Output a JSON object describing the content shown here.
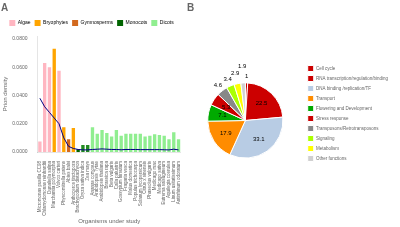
{
  "chart_data": [
    {
      "type": "bar",
      "title": "A",
      "xlabel": "Organisms under study",
      "ylabel": "Prion density",
      "categories": [
        "Micromonas pusilla CC98",
        "Chlamydomonas reinhardtii",
        "Dunaliella salina",
        "Marchantia polymorpha",
        "Volvox carteri",
        "Physcomitrella patens",
        "Abies balsi",
        "Anthoceros tinctopora",
        "Brachypodium distachyon",
        "Oryza sativa indica",
        "Zea mays",
        "Ananas comosus",
        "Arabidopsis Tytae",
        "Arabidopsis thaliana",
        "Brassica rapa",
        "Beta vulgaris",
        "Calla palustris",
        "Gossypium hirsutum",
        "Fragaria vesca",
        "Malus domestica",
        "Populus trichocarpa",
        "Solanum lycopersicum",
        "Citrus x sinensis",
        "Phaseolus vulgaris",
        "Medicago max",
        "Medicago sativa",
        "Eutrema salsugineum",
        "Aquilegia coerulea",
        "Linum usitatissimum",
        "Antirrhinum odoratum"
      ],
      "series": [
        {
          "type": "bar",
          "colors": [
            "#FFB6C1",
            "#FFB6C1",
            "#FFB6C1",
            "#FFA500",
            "#FFB6C1",
            "#FFA500",
            "#D2691E",
            "#FFA500",
            "#006400",
            "#228B22",
            "#228B22",
            "#90EE90",
            "#90EE90",
            "#90EE90",
            "#90EE90",
            "#90EE90",
            "#90EE90",
            "#90EE90",
            "#90EE90",
            "#90EE90",
            "#90EE90",
            "#90EE90",
            "#90EE90",
            "#90EE90",
            "#90EE90",
            "#90EE90",
            "#90EE90",
            "#90EE90",
            "#90EE90",
            "#90EE90"
          ],
          "values": [
            0.0075,
            0.063,
            0.06,
            0.073,
            0.0575,
            0.0175,
            0.009,
            0.017,
            0.002,
            0.005,
            0.005,
            0.0175,
            0.013,
            0.0155,
            0.0135,
            0.011,
            0.0155,
            0.0115,
            0.013,
            0.013,
            0.013,
            0.013,
            0.011,
            0.0115,
            0.0125,
            0.012,
            0.0115,
            0.009,
            0.014,
            0.009
          ]
        },
        {
          "type": "line",
          "color": "navy",
          "values": [
            0.038,
            0.032,
            0.028,
            0.024,
            0.02,
            0.01,
            0.004,
            0.0025,
            0.0018,
            0.0015,
            0.0015,
            0.0018,
            0.002,
            0.0022,
            0.002,
            0.0018,
            0.0018,
            0.0016,
            0.0018,
            0.0018,
            0.0018,
            0.0017,
            0.0017,
            0.0017,
            0.0017,
            0.0017,
            0.0016,
            0.0015,
            0.002,
            0.0015
          ]
        }
      ],
      "ylim": [
        0.0,
        0.082
      ],
      "yticks": [
        {
          "value": 0.0,
          "label": "0.0000"
        },
        {
          "value": 0.02,
          "label": "0.0200"
        },
        {
          "value": 0.04,
          "label": "0.0400"
        },
        {
          "value": 0.06,
          "label": "0.0600"
        },
        {
          "value": 0.08,
          "label": "0.0800"
        }
      ],
      "grid": false,
      "legend": "top",
      "legend_items": [
        {
          "name": "Algae",
          "color": "#FFB6C1"
        },
        {
          "name": "Bryophytes",
          "color": "#FFA500"
        },
        {
          "name": "Gymnosperms",
          "color": "#D2691E"
        },
        {
          "name": "Monocots",
          "color": "#006400"
        },
        {
          "name": "Dicots",
          "color": "#90EE90"
        }
      ]
    },
    {
      "type": "pie",
      "title": "B",
      "categories": [
        "Cell cycle",
        "RNA transcription/regulation/binding",
        "DNA binding /replication/TF",
        "Transport",
        "Flowering and Development",
        "Stress response",
        "Transposons/Retrotransposons",
        "Signaling",
        "Metabolism",
        "Other functions"
      ],
      "values": [
        1,
        22.5,
        33.1,
        17.9,
        7.1,
        5.3,
        4.6,
        3.4,
        2.9,
        1.9
      ],
      "colors": [
        "#CC0000",
        "#CC0000",
        "#B8CCE4",
        "#FF8C00",
        "#00AA00",
        "#CC0000",
        "#888888",
        "#AAFF00",
        "#FFFF00",
        "#D0D0D0"
      ],
      "data_labels": true,
      "legend": "right"
    }
  ]
}
